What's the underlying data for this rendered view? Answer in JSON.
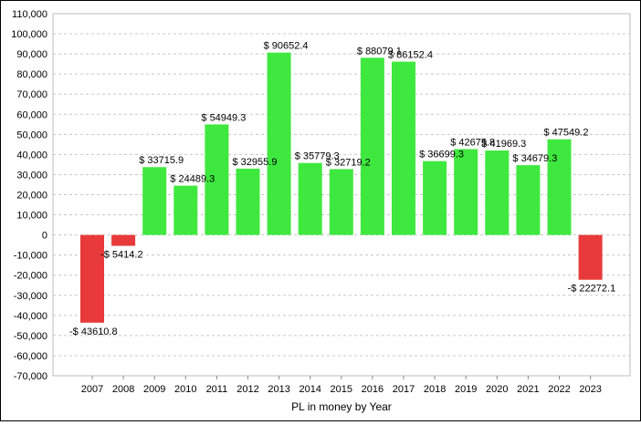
{
  "chart_data": {
    "type": "bar",
    "xlabel": "PL in money by Year",
    "ylabel": "",
    "ylim": [
      -70000,
      110000
    ],
    "y_ticks": [
      "110,000",
      "100,000",
      "90,000",
      "80,000",
      "70,000",
      "60,000",
      "50,000",
      "40,000",
      "30,000",
      "20,000",
      "10,000",
      "0",
      "-10,000",
      "-20,000",
      "-30,000",
      "-40,000",
      "-50,000",
      "-60,000",
      "-70,000"
    ],
    "categories": [
      "2007",
      "2008",
      "2009",
      "2010",
      "2011",
      "2012",
      "2013",
      "2014",
      "2015",
      "2016",
      "2017",
      "2018",
      "2019",
      "2020",
      "2021",
      "2022",
      "2023"
    ],
    "values": [
      -43610.8,
      -5414.2,
      33715.9,
      24489.3,
      54949.3,
      32955.9,
      90652.4,
      35779.3,
      32719.2,
      88079.1,
      86152.4,
      36699.3,
      42675.8,
      41969.3,
      34679.3,
      47549.2,
      -22272.1
    ],
    "data_labels": [
      "-$ 43610.8",
      "-$ 5414.2",
      "$ 33715.9",
      "$ 24489.3",
      "$ 54949.3",
      "$ 32955.9",
      "$ 90652.4",
      "$ 35779.3",
      "$ 32719.2",
      "$ 88079.1",
      "$ 86152.4",
      "$ 36699.3",
      "$ 42675.8",
      "$ 41969.3",
      "$ 34679.3",
      "$ 47549.2",
      "-$ 22272.1"
    ],
    "grid": true,
    "colors": {
      "positive": "#3fe83f",
      "negative": "#e83a3a",
      "grid": "#c8c8c8"
    }
  }
}
